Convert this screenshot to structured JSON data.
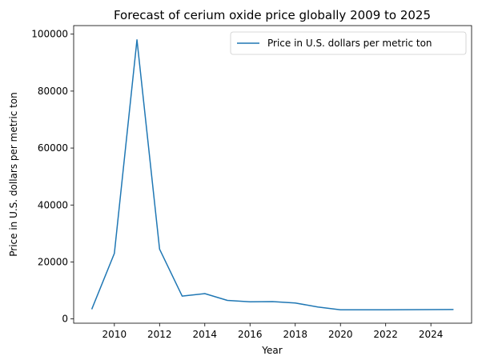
{
  "chart_data": {
    "type": "line",
    "title": "Forecast of cerium oxide price globally 2009 to 2025",
    "xlabel": "Year",
    "ylabel": "Price in U.S. dollars per metric ton",
    "x": [
      2009,
      2010,
      2011,
      2012,
      2013,
      2014,
      2015,
      2016,
      2017,
      2018,
      2019,
      2020,
      2021,
      2022,
      2023,
      2024,
      2025
    ],
    "series": [
      {
        "name": "Price in U.S. dollars per metric ton",
        "color": "#1f77b4",
        "values": [
          3400,
          23000,
          98000,
          24500,
          8000,
          8900,
          6500,
          6000,
          6100,
          5600,
          4200,
          3200,
          3200,
          3200,
          3250,
          3280,
          3300
        ]
      }
    ],
    "xlim": [
      2008.2,
      2025.8
    ],
    "ylim": [
      -1500,
      103000
    ],
    "xticks": [
      2010,
      2012,
      2014,
      2016,
      2018,
      2020,
      2022,
      2024
    ],
    "yticks": [
      0,
      20000,
      40000,
      60000,
      80000,
      100000
    ],
    "legend": "top-right",
    "grid": false
  }
}
